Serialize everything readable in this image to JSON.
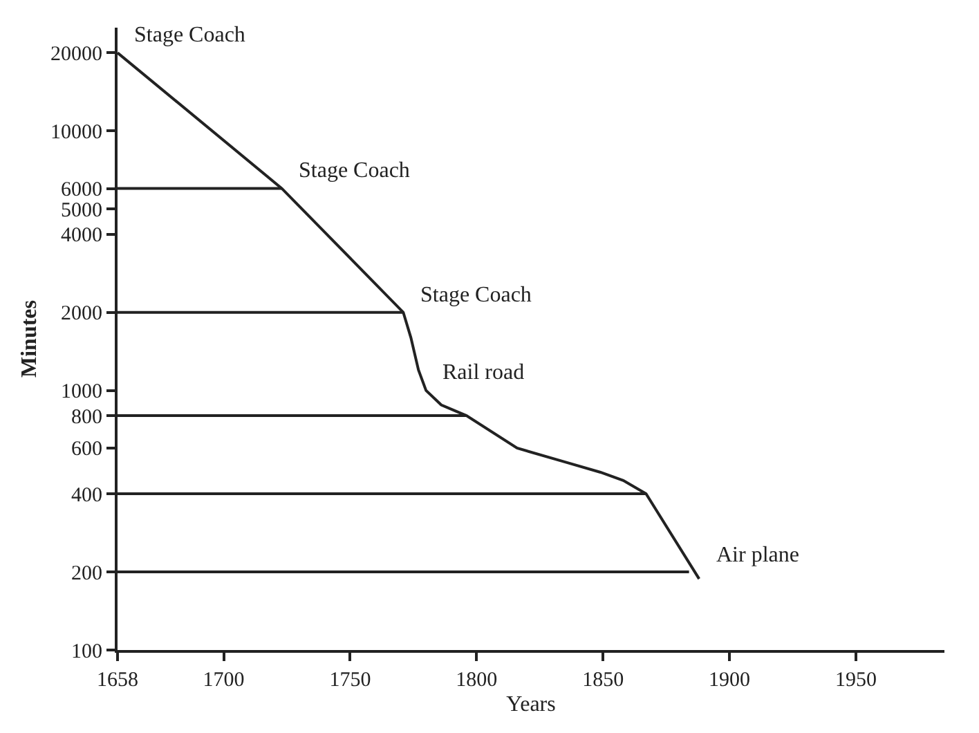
{
  "chart_data": {
    "type": "line",
    "xlabel": "Years",
    "ylabel": "Minutes",
    "log": "y",
    "marker": "none",
    "line_style": "solid",
    "xlim": [
      1658,
      1985
    ],
    "xticks": [
      1658,
      1700,
      1750,
      1800,
      1850,
      1900,
      1950
    ],
    "ylim": [
      100,
      25000
    ],
    "yticks": [
      100,
      200,
      400,
      600,
      800,
      1000,
      2000,
      4000,
      5000,
      6000,
      10000,
      20000
    ],
    "series": [
      {
        "color": "#222222",
        "x": [
          1658,
          1723,
          1771,
          1774,
          1777,
          1780,
          1786,
          1796,
          1816,
          1835,
          1849,
          1858,
          1867,
          1888
        ],
        "values": [
          20000,
          6000,
          2000,
          1600,
          1200,
          1000,
          880,
          800,
          600,
          530,
          484,
          450,
          400,
          188
        ]
      },
      {
        "color": "#222222",
        "x": [
          1658,
          1723
        ],
        "values": [
          6000,
          6000
        ]
      },
      {
        "color": "#222222",
        "x": [
          1658,
          1771
        ],
        "values": [
          2000,
          2000
        ]
      },
      {
        "color": "#222222",
        "x": [
          1658,
          1796
        ],
        "values": [
          800,
          800
        ]
      },
      {
        "color": "#222222",
        "x": [
          1658,
          1867
        ],
        "values": [
          400,
          400
        ]
      },
      {
        "color": "#222222",
        "x": [
          1658,
          1884
        ],
        "values": [
          200,
          200
        ]
      }
    ],
    "annotations": [
      {
        "text": "Stage Coach",
        "x": 1658,
        "y": 20000
      },
      {
        "text": "Stage Coach",
        "x": 1723,
        "y": 6000
      },
      {
        "text": "Stage Coach",
        "x": 1771,
        "y": 2000
      },
      {
        "text": "Rail road",
        "x": 1780,
        "y": 1000
      },
      {
        "text": "Air plane",
        "x": 1888,
        "y": 200
      }
    ]
  }
}
